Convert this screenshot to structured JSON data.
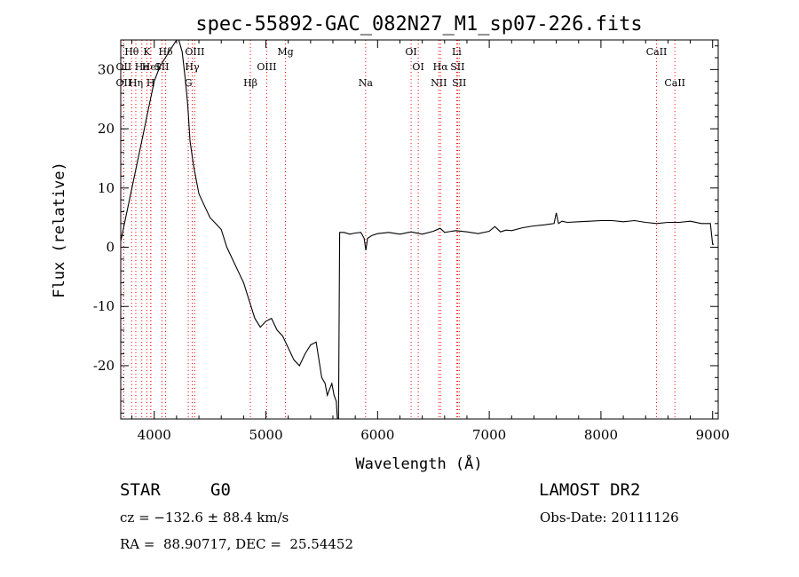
{
  "chart_data": {
    "type": "line",
    "title": "spec-55892-GAC_082N27_M1_sp07-226.fits",
    "xlabel": "Wavelength (Å)",
    "ylabel": "Flux (relative)",
    "xlim": [
      3700,
      9050
    ],
    "ylim": [
      -29,
      35
    ],
    "xticks": [
      4000,
      5000,
      6000,
      7000,
      8000,
      9000
    ],
    "yticks": [
      -20,
      -10,
      0,
      10,
      20,
      30
    ],
    "grid": false,
    "series": [
      {
        "x": [
          3700,
          3750,
          3800,
          3850,
          3900,
          3950,
          4000,
          4050,
          4100,
          4150,
          4200,
          4220,
          4250,
          4280,
          4300,
          4320,
          4350,
          4380,
          4400,
          4450,
          4500,
          4550,
          4600,
          4650,
          4700,
          4750,
          4800,
          4850,
          4900,
          4950,
          5000,
          5050,
          5100,
          5150,
          5200,
          5250,
          5300,
          5350,
          5400,
          5450,
          5500,
          5530,
          5550,
          5570,
          5590,
          5610,
          5630,
          5640,
          5650,
          5660,
          5700,
          5750,
          5800,
          5850,
          5880,
          5895,
          5910,
          5950,
          6000,
          6100,
          6200,
          6300,
          6400,
          6500,
          6560,
          6600,
          6700,
          6800,
          6900,
          7000,
          7050,
          7100,
          7150,
          7200,
          7300,
          7400,
          7500,
          7580,
          7600,
          7620,
          7650,
          7700,
          7800,
          7900,
          8000,
          8100,
          8200,
          8300,
          8400,
          8500,
          8600,
          8700,
          8800,
          8900,
          8980,
          9000,
          9010
        ],
        "y": [
          1,
          5.5,
          10,
          14.5,
          19,
          23.5,
          28,
          30.5,
          32,
          33.5,
          35,
          35,
          33,
          28,
          24,
          18,
          14,
          11,
          9,
          7,
          5,
          4,
          3,
          0,
          -2,
          -4,
          -6,
          -9,
          -12,
          -13.5,
          -12.5,
          -12,
          -14,
          -15,
          -17,
          -19,
          -20,
          -18,
          -16.5,
          -16,
          -22,
          -23,
          -25,
          -24,
          -23,
          -25,
          -26,
          -29,
          -29,
          2.5,
          2.5,
          2.2,
          2.4,
          2.5,
          1.5,
          -0.5,
          1.5,
          2,
          2.3,
          2.5,
          2.2,
          2.6,
          2.2,
          2.7,
          3.2,
          2.5,
          2.8,
          2.6,
          2.3,
          2.7,
          3.5,
          2.6,
          2.9,
          2.8,
          3.3,
          3.6,
          3.8,
          4,
          5.8,
          4,
          4.4,
          4.2,
          4.3,
          4.4,
          4.5,
          4.5,
          4.3,
          4.5,
          4.2,
          4,
          4.2,
          4.2,
          4.4,
          4,
          4,
          0.5,
          0.5
        ]
      }
    ],
    "spectral_lines": [
      {
        "label": "Hθ",
        "x": 3798,
        "row": 1,
        "color": "#000000"
      },
      {
        "label": "K",
        "x": 3934,
        "row": 1,
        "color": "#000000"
      },
      {
        "label": "Hδ",
        "x": 4102,
        "row": 1,
        "color": "#000000"
      },
      {
        "label": "OIII",
        "x": 4363,
        "row": 1,
        "color": "#000000"
      },
      {
        "label": "Mg",
        "x": 5175,
        "row": 1,
        "color": "#000000"
      },
      {
        "label": "OI",
        "x": 6300,
        "row": 1,
        "color": "#000000"
      },
      {
        "label": "Li",
        "x": 6708,
        "row": 1,
        "color": "#000000"
      },
      {
        "label": "CaII",
        "x": 8498,
        "row": 1,
        "color": "#000000"
      },
      {
        "label": "OII",
        "x": 3727,
        "row": 2,
        "color": "#000000"
      },
      {
        "label": "He",
        "x": 3889,
        "row": 2,
        "color": "#000000"
      },
      {
        "label": "HeI",
        "x": 3970,
        "row": 2,
        "color": "#000000"
      },
      {
        "label": "SII",
        "x": 4069,
        "row": 2,
        "color": "#000000"
      },
      {
        "label": "Hγ",
        "x": 4340,
        "row": 2,
        "color": "#000000"
      },
      {
        "label": "OIII",
        "x": 5007,
        "row": 2,
        "color": "#000000"
      },
      {
        "label": "OI",
        "x": 6364,
        "row": 2,
        "color": "#000000"
      },
      {
        "label": "Hα",
        "x": 6563,
        "row": 2,
        "color": "#000000"
      },
      {
        "label": "SII",
        "x": 6716,
        "row": 2,
        "color": "#000000"
      },
      {
        "label": "OII",
        "x": 3727,
        "row": 3,
        "color": "#000000"
      },
      {
        "label": "Hη",
        "x": 3835,
        "row": 3,
        "color": "#000000"
      },
      {
        "label": "H",
        "x": 3968,
        "row": 3,
        "color": "#000000"
      },
      {
        "label": "G",
        "x": 4305,
        "row": 3,
        "color": "#000000"
      },
      {
        "label": "Hβ",
        "x": 4861,
        "row": 3,
        "color": "#000000"
      },
      {
        "label": "Na",
        "x": 5893,
        "row": 3,
        "color": "#000000"
      },
      {
        "label": "NII",
        "x": 6548,
        "row": 3,
        "color": "#000000"
      },
      {
        "label": "SII",
        "x": 6731,
        "row": 3,
        "color": "#000000"
      },
      {
        "label": "CaII",
        "x": 8662,
        "row": 3,
        "color": "#000000"
      }
    ],
    "line_marker_color": "#ff0000",
    "spectrum_color": "#000000"
  },
  "info": {
    "class": "STAR",
    "subclass": "G0",
    "survey": "LAMOST DR2",
    "cz": "cz = −132.6 ± 88.4 km/s",
    "obs_date": "Obs-Date: 20111126",
    "coords": "RA =  88.90717, DEC =  25.54452"
  }
}
